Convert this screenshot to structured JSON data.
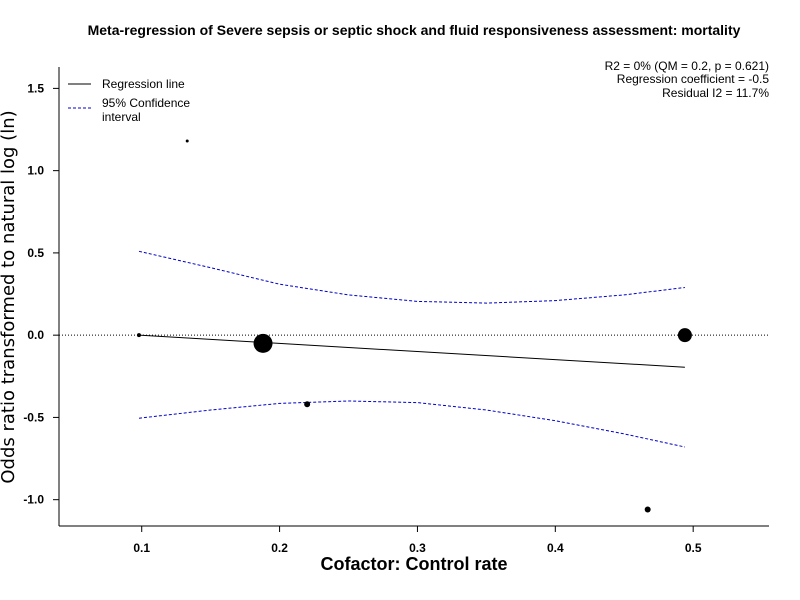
{
  "chart_data": {
    "type": "scatter",
    "title": "Meta-regression of  Severe sepsis or septic shock and fluid responsiveness assessment: mortality",
    "xlabel": "Cofactor:  Control rate",
    "ylabel": "Odds ratio transformed to natural log (ln)",
    "xlim": [
      0.04,
      0.555
    ],
    "ylim": [
      -1.16,
      1.63
    ],
    "x_ticks": [
      {
        "value": 0.1,
        "label": "0.1"
      },
      {
        "value": 0.2,
        "label": "0.2"
      },
      {
        "value": 0.3,
        "label": "0.3"
      },
      {
        "value": 0.4,
        "label": "0.4"
      },
      {
        "value": 0.5,
        "label": "0.5"
      }
    ],
    "y_ticks": [
      {
        "value": 1.5,
        "label": "1.5"
      },
      {
        "value": 1.0,
        "label": "1.0"
      },
      {
        "value": 0.5,
        "label": "0.5"
      },
      {
        "value": 0.0,
        "label": "0.0"
      },
      {
        "value": -0.5,
        "label": "-0.5"
      },
      {
        "value": -1.0,
        "label": "-1.0"
      }
    ],
    "reference_line_y": 0,
    "studies": [
      {
        "x": 0.098,
        "y": 0.0,
        "size": 2
      },
      {
        "x": 0.133,
        "y": 1.18,
        "size": 1.5
      },
      {
        "x": 0.188,
        "y": -0.05,
        "size": 9.5
      },
      {
        "x": 0.22,
        "y": -0.42,
        "size": 3
      },
      {
        "x": 0.467,
        "y": -1.06,
        "size": 3
      },
      {
        "x": 0.494,
        "y": 0.0,
        "size": 7
      }
    ],
    "regression_line": {
      "name": "Regression line",
      "x": [
        0.098,
        0.494
      ],
      "y": [
        0.0,
        -0.195
      ],
      "color": "#000000"
    },
    "confidence_interval": {
      "name": "95% Confidence interval",
      "color": "#0000cc",
      "x": [
        0.098,
        0.15,
        0.2,
        0.25,
        0.3,
        0.35,
        0.4,
        0.45,
        0.494
      ],
      "upper": [
        0.51,
        0.41,
        0.31,
        0.245,
        0.205,
        0.195,
        0.21,
        0.245,
        0.29
      ],
      "lower": [
        -0.505,
        -0.455,
        -0.415,
        -0.4,
        -0.41,
        -0.455,
        -0.52,
        -0.6,
        -0.68
      ]
    },
    "legend": {
      "position": "top-left",
      "entries": [
        {
          "label": "Regression line",
          "style": "solid",
          "color": "#000000"
        },
        {
          "label_lines": [
            "95% Confidence",
            "interval"
          ],
          "style": "dashed",
          "color": "#0000cc"
        }
      ]
    },
    "stats": {
      "line1": "R2 = 0% (QM = 0.2, p = 0.621)",
      "line2": "Regression coefficient = -0.5",
      "line3": "Residual I2 = 11.7%"
    }
  }
}
